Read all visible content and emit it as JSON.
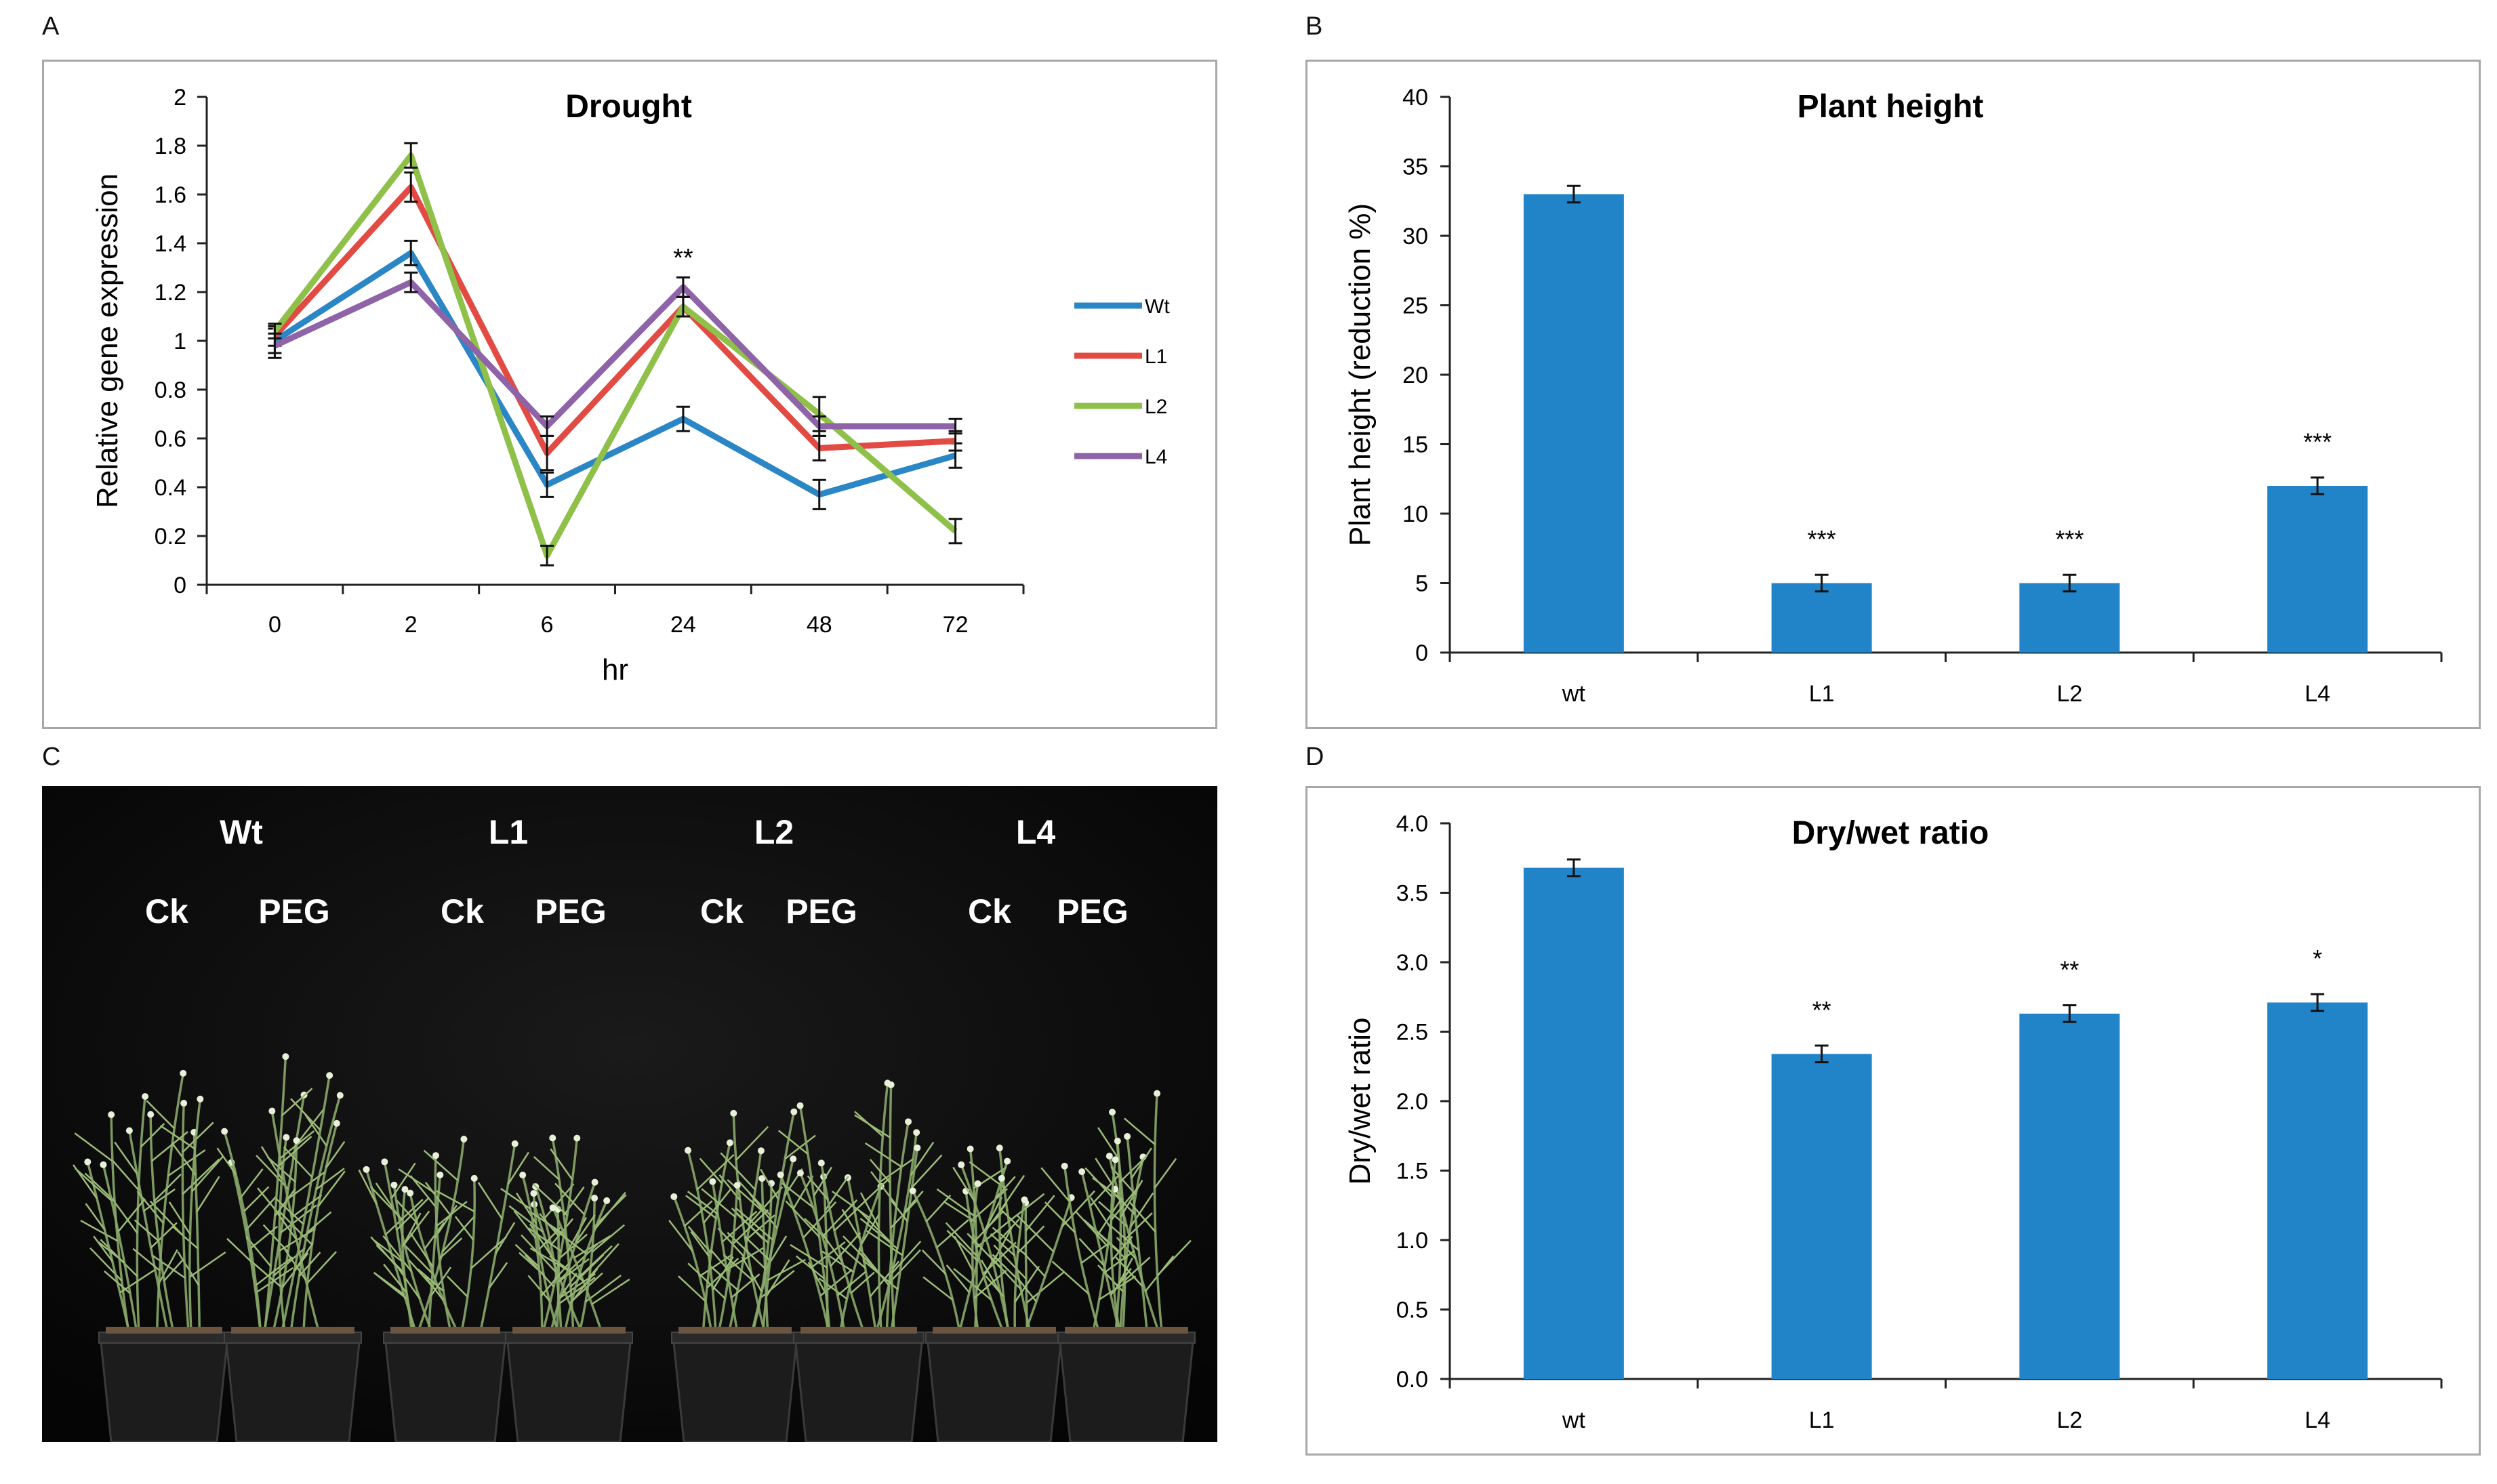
{
  "panels": {
    "a": "A",
    "b": "B",
    "c": "C",
    "d": "D"
  },
  "colors": {
    "bar": "#2284c8",
    "wt": "#2a86c5",
    "l1": "#e14b43",
    "l2": "#8fc049",
    "l4": "#8e63a8"
  },
  "photo": {
    "genotypes": [
      "Wt",
      "L1",
      "L2",
      "L4"
    ],
    "treatments": [
      "Ck",
      "PEG",
      "Ck",
      "PEG",
      "Ck",
      "PEG",
      "Ck",
      "PEG"
    ]
  },
  "chart_data": [
    {
      "type": "line",
      "title": "Drought",
      "xlabel": "hr",
      "ylabel": "Relative gene expression",
      "categories": [
        "0",
        "2",
        "6",
        "24",
        "48",
        "72"
      ],
      "ylim": [
        0,
        2
      ],
      "yticks": [
        "0",
        "0.2",
        "0.4",
        "0.6",
        "0.8",
        "1",
        "1.2",
        "1.4",
        "1.6",
        "1.8",
        "2"
      ],
      "annotations": [
        {
          "category": "24",
          "text": "**"
        }
      ],
      "series": [
        {
          "name": "Wt",
          "color": "#2a86c5",
          "values": [
            1.0,
            1.36,
            0.41,
            0.68,
            0.37,
            0.53
          ],
          "errors": [
            0.05,
            0.05,
            0.05,
            0.05,
            0.06,
            0.05
          ]
        },
        {
          "name": "L1",
          "color": "#e14b43",
          "values": [
            1.02,
            1.63,
            0.54,
            1.14,
            0.56,
            0.59
          ],
          "errors": [
            0.04,
            0.06,
            0.07,
            0.04,
            0.05,
            0.04
          ]
        },
        {
          "name": "L2",
          "color": "#8fc049",
          "values": [
            1.04,
            1.76,
            0.12,
            1.14,
            0.7,
            0.22
          ],
          "errors": [
            0.03,
            0.05,
            0.04,
            0.04,
            0.07,
            0.05
          ]
        },
        {
          "name": "L4",
          "color": "#8e63a8",
          "values": [
            0.98,
            1.24,
            0.65,
            1.22,
            0.65,
            0.65
          ],
          "errors": [
            0.05,
            0.04,
            0.04,
            0.04,
            0.04,
            0.03
          ]
        }
      ]
    },
    {
      "type": "bar",
      "title": "Plant height",
      "xlabel": "",
      "ylabel": "Plant height (reduction %)",
      "categories": [
        "wt",
        "L1",
        "L2",
        "L4"
      ],
      "values": [
        33,
        5,
        5,
        12
      ],
      "errors": [
        0.6,
        0.6,
        0.6,
        0.6
      ],
      "annotations": [
        "",
        "***",
        "***",
        "***"
      ],
      "ylim": [
        0,
        40
      ],
      "yticks": [
        "0",
        "5",
        "10",
        "15",
        "20",
        "25",
        "30",
        "35",
        "40"
      ]
    },
    {
      "type": "bar",
      "title": "Dry/wet ratio",
      "xlabel": "",
      "ylabel": "Dry/wet ratio",
      "categories": [
        "wt",
        "L1",
        "L2",
        "L4"
      ],
      "values": [
        3.68,
        2.34,
        2.63,
        2.71
      ],
      "errors": [
        0.06,
        0.06,
        0.06,
        0.06
      ],
      "annotations": [
        "",
        "**",
        "**",
        "*"
      ],
      "ylim": [
        0,
        4
      ],
      "yticks": [
        "0.0",
        "0.5",
        "1.0",
        "1.5",
        "2.0",
        "2.5",
        "3.0",
        "3.5",
        "4.0"
      ]
    }
  ]
}
